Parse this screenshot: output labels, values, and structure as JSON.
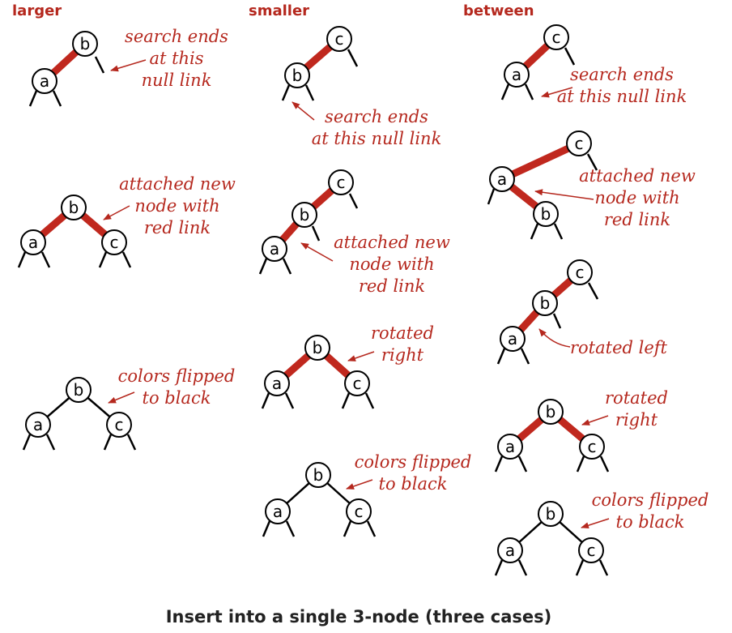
{
  "columns": [
    {
      "heading": "larger"
    },
    {
      "heading": "smaller"
    },
    {
      "heading": "between"
    }
  ],
  "annotations": {
    "search_ends": [
      "search ends",
      "at this",
      "null link"
    ],
    "search_ends_2line": [
      "search ends",
      "at this null link"
    ],
    "attached": [
      "attached new",
      "node with",
      "red link"
    ],
    "rotated_right": [
      "rotated",
      "right"
    ],
    "rotated_left": "rotated left",
    "colors_flipped": [
      "colors flipped",
      "to black"
    ]
  },
  "node_keys": {
    "a": "a",
    "b": "b",
    "c": "c"
  },
  "colors": {
    "red_link": "#c0281e",
    "label_red": "#b5281e",
    "black": "#000000"
  },
  "caption": "Insert into a single 3-node (three cases)"
}
